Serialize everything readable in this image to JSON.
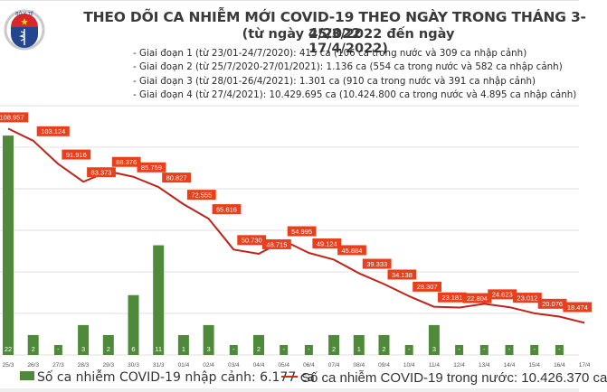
{
  "header": {
    "logo_text": "BỘ Y TẾ",
    "title": "THEO DÕI CA NHIỄM MỚI COVID-19 THEO NGÀY TRONG THÁNG 3-4/2022",
    "subtitle": "(từ ngày 25/3/2022 đến ngày 17/4/2022)",
    "phases": [
      "- Giai đoạn 1 (từ 23/01-24/7/2020): 415 ca (106 ca trong nước và 309 ca nhập cảnh)",
      "- Giai đoạn 2 (từ 25/7/2020-27/01/2021): 1.136 ca (554 ca trong nước và 582 ca nhập cảnh)",
      "- Giai đoạn 3 (từ 28/01-26/4/2021): 1.301 ca (910 ca trong nước và 391 ca nhập cảnh)",
      "- Giai đoạn 4 (từ 27/4/2021): 10.429.695 ca (10.424.800 ca trong nước và 4.895 ca nhập cảnh)"
    ]
  },
  "colors": {
    "bar": "#4f8a3a",
    "line": "#c0221a",
    "label_bg": "#e8401c",
    "grid": "#e2e2e2"
  },
  "chart_data": {
    "type": "bar+line",
    "title": "THEO DÕI CA NHIỄM MỚI COVID-19 THEO NGÀY TRONG THÁNG 3-4/2022",
    "categories": [
      "25/3",
      "26/3",
      "27/3",
      "28/3",
      "29/3",
      "30/3",
      "31/3",
      "01/4",
      "02/4",
      "03/4",
      "04/4",
      "05/4",
      "06/4",
      "07/4",
      "08/4",
      "09/4",
      "10/4",
      "11/4",
      "12/4",
      "13/4",
      "14/4",
      "15/4",
      "16/4",
      "17/4"
    ],
    "series": [
      {
        "name": "Số ca nhiễm COVID-19 nhập cảnh",
        "type": "bar",
        "axis": "secondary",
        "values": [
          22,
          2,
          0,
          3,
          2,
          6,
          11,
          1,
          3,
          0,
          2,
          0,
          0,
          2,
          1,
          2,
          0,
          3,
          0,
          0,
          0,
          0,
          0,
          null
        ],
        "labels": [
          "22",
          "2",
          "-",
          "3",
          "2",
          "6",
          "11",
          "1",
          "3",
          "-",
          "2",
          "-",
          "-",
          "2",
          "1",
          "2",
          "-",
          "3",
          "-",
          "-",
          "-",
          "-",
          "-",
          ""
        ]
      },
      {
        "name": "Số ca nhiễm COVID-19 trong nước",
        "type": "line",
        "axis": "primary",
        "values": [
          108957,
          103124,
          91916,
          83373,
          88376,
          85759,
          80827,
          72555,
          65616,
          50730,
          48715,
          54995,
          49124,
          45884,
          39333,
          34138,
          28307,
          23181,
          22804,
          24623,
          23012,
          20076,
          18474,
          15500
        ],
        "labels": [
          "108.957",
          "103.124",
          "91.916",
          "83.373",
          "88.376",
          "85.759",
          "80.827",
          "72.555",
          "65.616",
          "50.730",
          "48.715",
          "54.995",
          "49.124",
          "45.884",
          "39.333",
          "34.138",
          "28.307",
          "23.181",
          "22.804",
          "24.623",
          "23.012",
          "20.076",
          "18.474",
          ""
        ]
      }
    ],
    "ylim_primary": [
      0,
      120000
    ],
    "ylim_secondary": [
      0,
      25
    ],
    "grid": true,
    "legend_position": "bottom",
    "legend": [
      "Số ca nhiễm COVID-19 nhập cảnh: 6.177 ca",
      "Số ca nhiễm COVID-19 trong nước: 10.426.370 ca"
    ]
  }
}
